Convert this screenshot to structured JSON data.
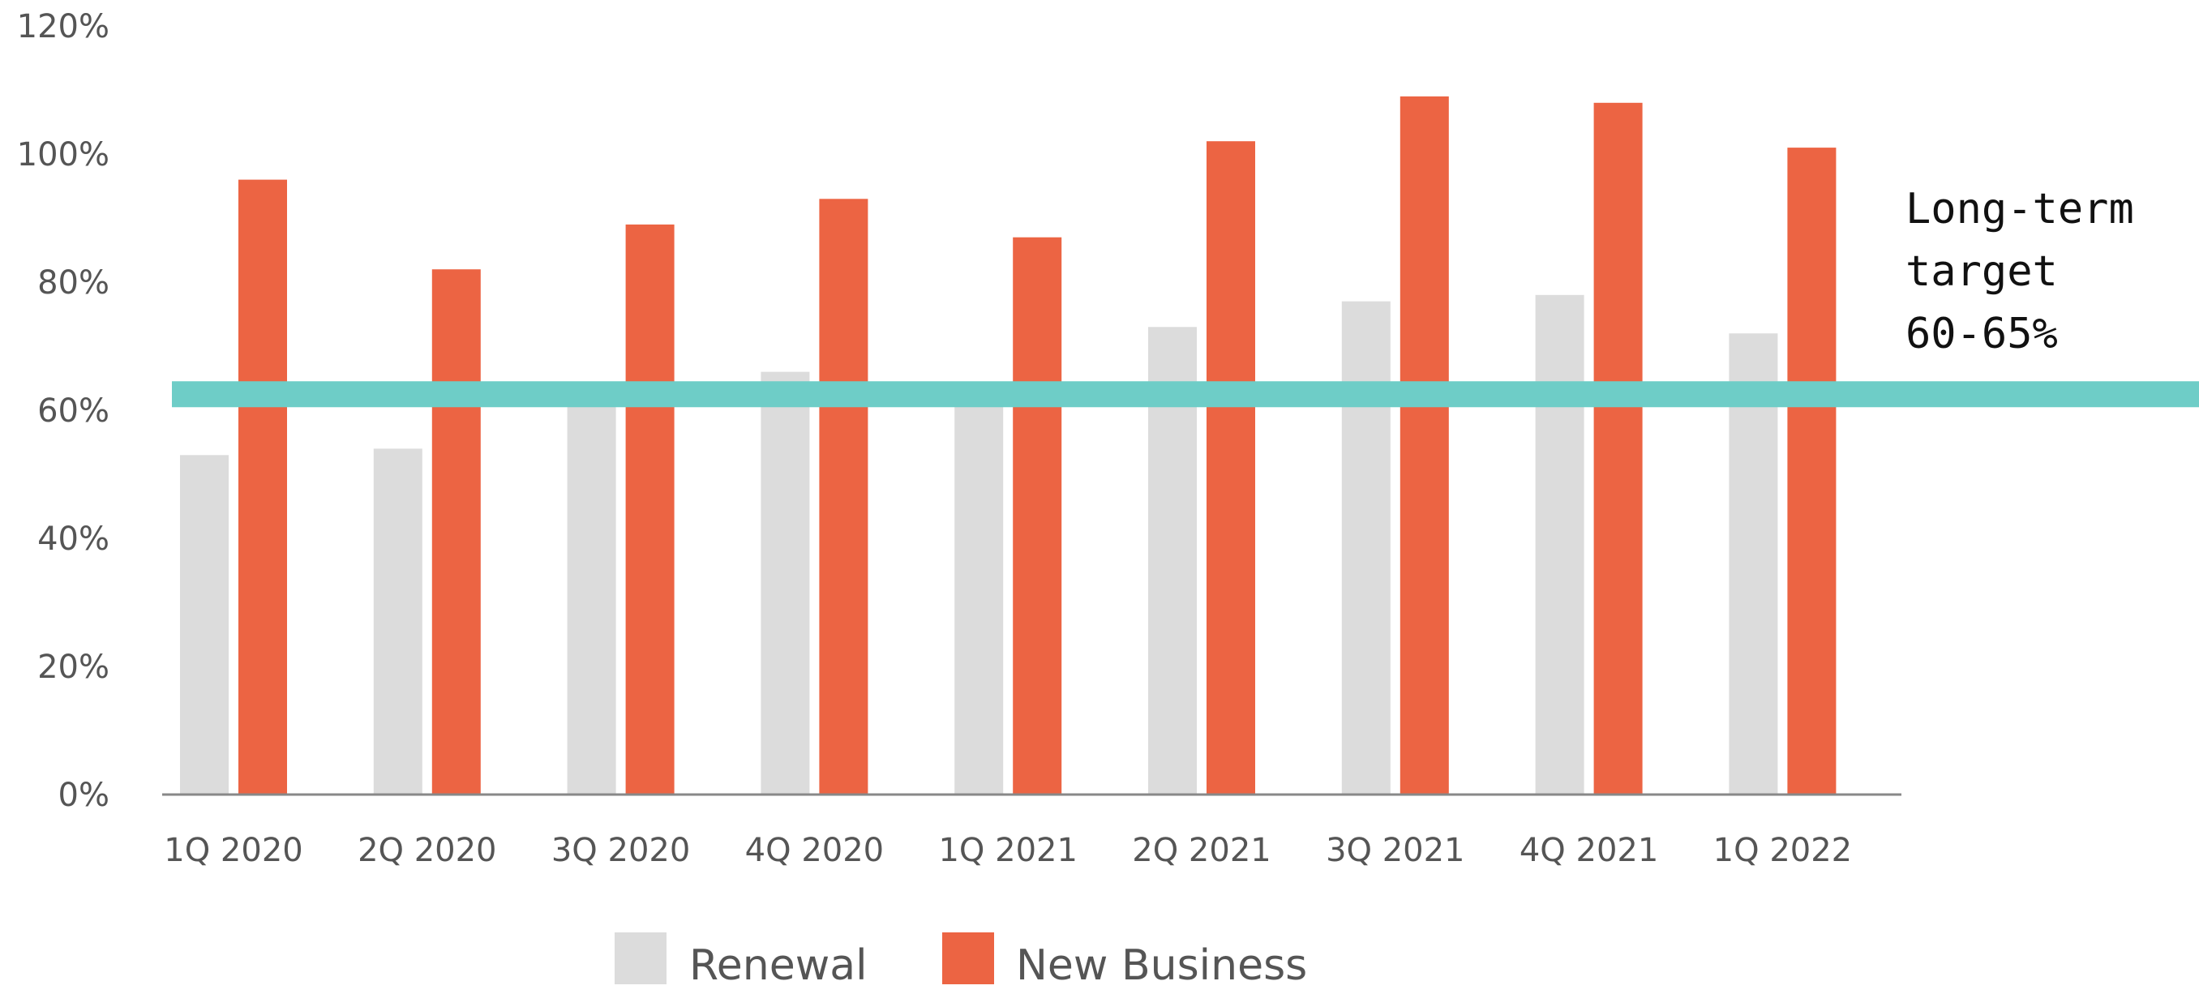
{
  "chart_data": {
    "type": "bar",
    "title": "",
    "xlabel": "",
    "ylabel": "",
    "categories": [
      "1Q 2020",
      "2Q 2020",
      "3Q 2020",
      "4Q 2020",
      "1Q 2021",
      "2Q 2021",
      "3Q 2021",
      "4Q 2021",
      "1Q 2022"
    ],
    "series": [
      {
        "name": "Renewal",
        "color": "#dcdcdc",
        "values": [
          53,
          54,
          61,
          66,
          61,
          73,
          77,
          78,
          72
        ]
      },
      {
        "name": "New Business",
        "color": "#ec6443",
        "values": [
          96,
          82,
          89,
          93,
          87,
          102,
          109,
          108,
          101
        ]
      }
    ],
    "ylim": [
      0,
      120
    ],
    "yticks": [
      0,
      20,
      40,
      60,
      80,
      100,
      120
    ],
    "ytick_labels": [
      "0%",
      "20%",
      "40%",
      "60%",
      "80%",
      "100%",
      "120%"
    ],
    "grid": false,
    "legend_position": "bottom-center",
    "reference_line": {
      "value": 62.5,
      "color": "#6ecdc7",
      "label_lines": [
        "Long-term",
        "target",
        "60-65%"
      ]
    },
    "axis_color": "#888888"
  }
}
